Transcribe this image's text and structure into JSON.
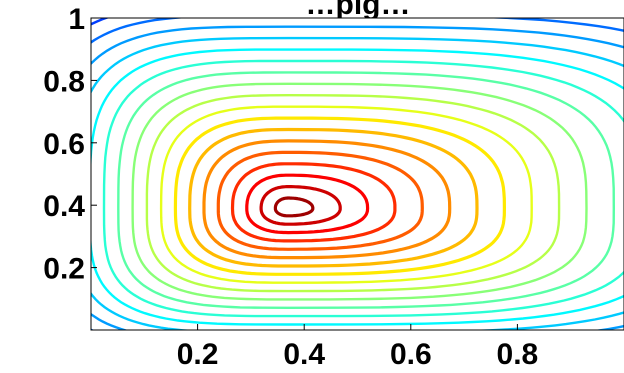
{
  "chart_data": {
    "type": "contour",
    "title": "…pig…",
    "xlabel": "",
    "ylabel": "",
    "xlim": [
      0,
      1
    ],
    "ylim": [
      0,
      1
    ],
    "xticks": [
      "0.2",
      "0.4",
      "0.6",
      "0.8"
    ],
    "yticks": [
      "0.2",
      "0.4",
      "0.6",
      "0.8",
      "1"
    ],
    "xtick_values": [
      0.2,
      0.4,
      0.6,
      0.8
    ],
    "ytick_values": [
      0.2,
      0.4,
      0.6,
      0.8,
      1
    ],
    "center": [
      0.37,
      0.39
    ],
    "colormap": "jet",
    "levels": 22,
    "colors": {
      "low": "#00008f",
      "high": "#800000",
      "background": "#ffffff"
    },
    "grid": false,
    "legend": "none"
  }
}
